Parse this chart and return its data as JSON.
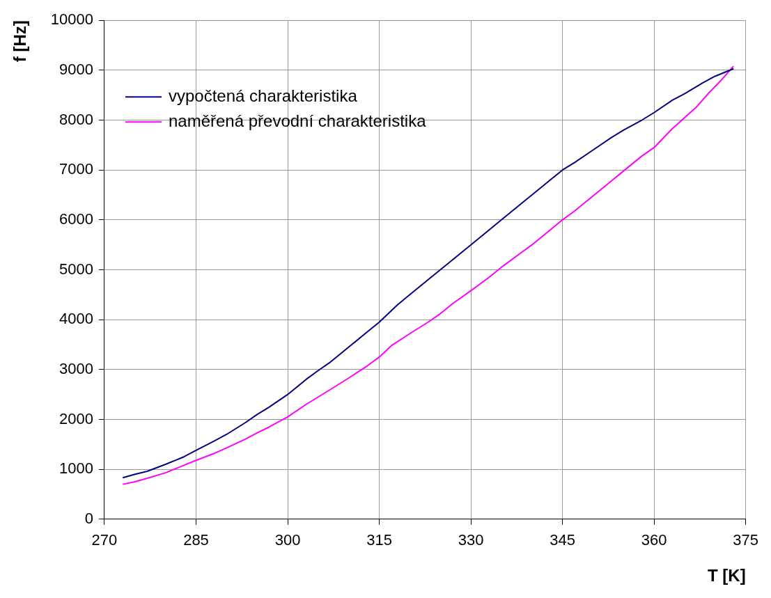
{
  "chart_data": {
    "type": "line",
    "xlabel": "T [K]",
    "ylabel": "f [Hz]",
    "xlim": [
      270,
      375
    ],
    "xticks": [
      270,
      285,
      300,
      315,
      330,
      345,
      360,
      375
    ],
    "ylim": [
      0,
      10000
    ],
    "yticks": [
      0,
      1000,
      2000,
      3000,
      4000,
      5000,
      6000,
      7000,
      8000,
      9000,
      10000
    ],
    "grid": true,
    "legend": "top left",
    "marker": "none",
    "line_style": "solid",
    "series": [
      {
        "name": "vypočtená charakteristika",
        "color": "#000080",
        "x": [
          273,
          275,
          277,
          280,
          283,
          285,
          288,
          290,
          293,
          295,
          297,
          300,
          303,
          305,
          307,
          310,
          313,
          315,
          318,
          320,
          323,
          325,
          327,
          330,
          333,
          335,
          338,
          340,
          343,
          345,
          347,
          350,
          353,
          355,
          358,
          360,
          363,
          365,
          368,
          370,
          373
        ],
        "values": [
          830,
          900,
          960,
          1100,
          1250,
          1380,
          1570,
          1700,
          1930,
          2100,
          2250,
          2500,
          2800,
          2980,
          3150,
          3450,
          3750,
          3950,
          4300,
          4500,
          4800,
          5000,
          5200,
          5500,
          5800,
          6000,
          6300,
          6500,
          6800,
          7000,
          7150,
          7400,
          7650,
          7800,
          8000,
          8150,
          8400,
          8530,
          8750,
          8880,
          9030
        ]
      },
      {
        "name": "naměřená převodní charakteristika",
        "color": "#ff00ff",
        "x": [
          273,
          275,
          277,
          280,
          283,
          285,
          288,
          290,
          293,
          295,
          297,
          300,
          303,
          305,
          307,
          310,
          313,
          315,
          317,
          320,
          323,
          325,
          327,
          330,
          333,
          335,
          338,
          340,
          343,
          345,
          347,
          350,
          353,
          355,
          358,
          360,
          363,
          365,
          367,
          369,
          371,
          373
        ],
        "values": [
          700,
          750,
          820,
          930,
          1080,
          1180,
          1320,
          1430,
          1600,
          1730,
          1850,
          2050,
          2300,
          2450,
          2600,
          2830,
          3070,
          3250,
          3480,
          3720,
          3950,
          4120,
          4320,
          4580,
          4850,
          5050,
          5320,
          5500,
          5800,
          6000,
          6180,
          6480,
          6780,
          6980,
          7280,
          7450,
          7830,
          8050,
          8270,
          8550,
          8800,
          9080
        ]
      }
    ]
  }
}
